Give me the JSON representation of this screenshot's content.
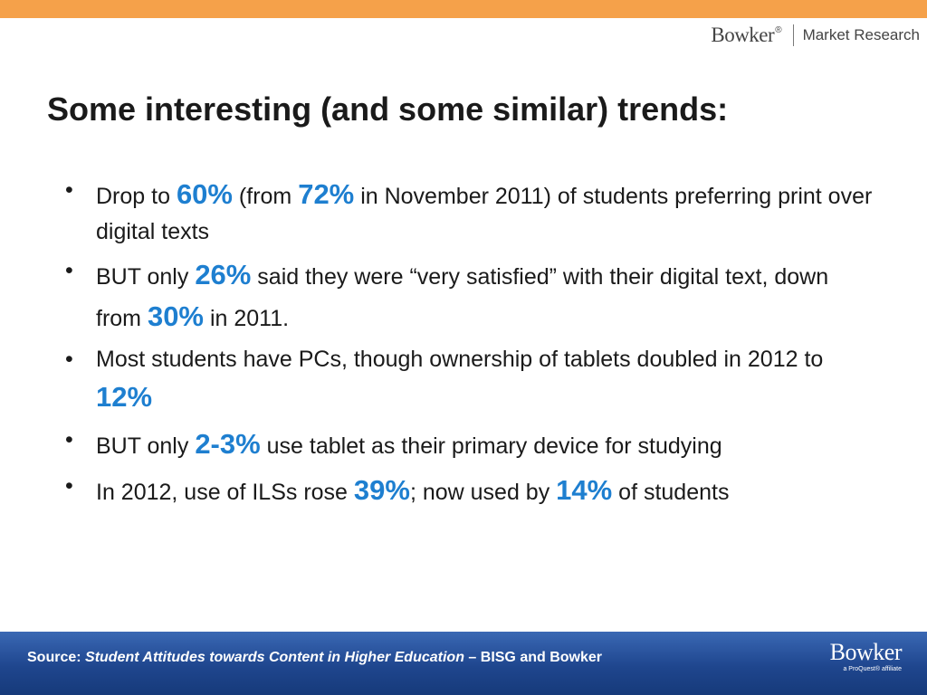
{
  "header": {
    "logo_word": "Bowker",
    "logo_mark": "®",
    "tagline": "Market Research"
  },
  "title": "Some interesting (and some similar) trends:",
  "bullets": {
    "b1": {
      "t1": "Drop to ",
      "h1": "60%",
      "t2": " (from ",
      "h2": "72%",
      "t3": " in November 2011) of students preferring print over digital texts"
    },
    "b2": {
      "t1": "BUT only ",
      "h1": "26%",
      "t2": " said they were “very satisfied” with their digital text, down from ",
      "h2": "30%",
      "t3": " in 2011."
    },
    "b3": {
      "t1": "Most students have PCs, though ownership of tablets doubled in 2012 to ",
      "h1": "12%"
    },
    "b4": {
      "t1": "BUT only ",
      "h1": "2-3%",
      "t2": " use tablet as their primary device for studying"
    },
    "b5": {
      "t1": "In 2012, use of ILSs rose ",
      "h1": "39%",
      "t2": "; now used by ",
      "h2": "14%",
      "t3": " of students"
    }
  },
  "footer": {
    "source_label": "Source: ",
    "source_title": "Student Attitudes towards Content in Higher Education",
    "source_rest": " – BISG and Bowker",
    "logo_word": "Bowker",
    "logo_tagline": "a ProQuest® affiliate"
  },
  "colors": {
    "top_bar": "#f5a14a",
    "highlight": "#1e7fd0",
    "footer_bg": "#1f468e"
  }
}
